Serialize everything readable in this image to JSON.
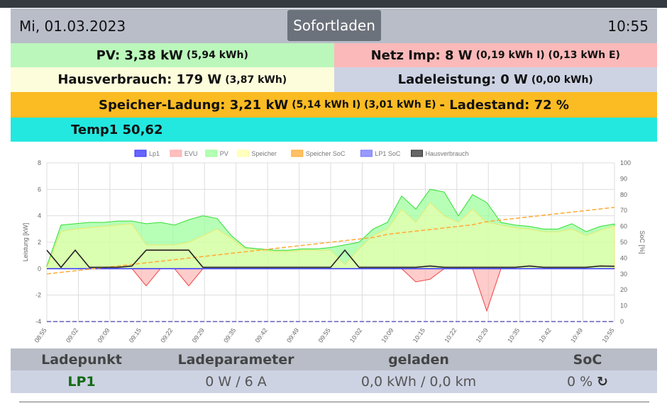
{
  "header": {
    "date": "Mi, 01.03.2023",
    "mode_button": "Sofortladen",
    "time": "10:55"
  },
  "pv": {
    "label": "PV: 3,38 kW",
    "detail": "(5,94 kWh)",
    "color": "#bbf7bb"
  },
  "netz": {
    "label": "Netz Imp: 8 W",
    "detail": "(0,19 kWh I) (0,13 kWh E)",
    "color": "#fbb9b9"
  },
  "haus": {
    "label": "Hausverbrauch: 179 W",
    "detail": "(3,87 kWh)",
    "color": "#fdfddb"
  },
  "lade": {
    "label": "Ladeleistung: 0 W",
    "detail": "(0,00 kWh)",
    "color": "#cdd3e3"
  },
  "speicher": {
    "label": "Speicher-Ladung: 3,21 kW",
    "detail": "(5,14 kWh I) (3,01 kWh E)",
    "soc": "- Ladestand: 72 %",
    "color": "#fbbb22"
  },
  "temp": {
    "label": "Temp1 50,62",
    "color": "#22e8e0"
  },
  "table": {
    "headers": [
      "Ladepunkt",
      "Ladeparameter",
      "geladen",
      "SoC"
    ],
    "row": {
      "name": "LP1",
      "param": "0 W / 6 A",
      "charged": "0,0 kWh / 0,0 km",
      "soc": "0 %"
    }
  },
  "chart_data": {
    "type": "line",
    "ylabel": "Leistung [kW]",
    "y2label": "SoC [%]",
    "ylim": [
      -4,
      8
    ],
    "y2lim": [
      0,
      100
    ],
    "yticks": [
      "8",
      "6",
      "4",
      "2",
      "0",
      "-2",
      "-4"
    ],
    "y2ticks": [
      "100",
      "90",
      "80",
      "70",
      "60",
      "50",
      "40",
      "30",
      "20",
      "10",
      "0"
    ],
    "xticks": [
      "08:55",
      "09:02",
      "09:09",
      "09:15",
      "09:22",
      "09:29",
      "09:35",
      "09:42",
      "09:49",
      "09:55",
      "10:02",
      "10:09",
      "10:15",
      "10:22",
      "10:29",
      "10:35",
      "10:42",
      "10:49",
      "10:55"
    ],
    "legend": [
      {
        "name": "Lp1",
        "color": "#3333ff"
      },
      {
        "name": "EVU",
        "color": "#ffaaaa"
      },
      {
        "name": "PV",
        "color": "#99ff99"
      },
      {
        "name": "Speicher",
        "color": "#ffffaa"
      },
      {
        "name": "Speicher SoC",
        "color": "#ffaa33"
      },
      {
        "name": "LP1 SoC",
        "color": "#7777ff"
      },
      {
        "name": "Hausverbrauch",
        "color": "#333333"
      }
    ],
    "x_minutes_from_0855": [
      0,
      3,
      6,
      9,
      12,
      15,
      18,
      21,
      24,
      27,
      30,
      33,
      36,
      39,
      42,
      45,
      48,
      51,
      54,
      57,
      60,
      63,
      66,
      69,
      72,
      75,
      78,
      81,
      84,
      87,
      90,
      93,
      96,
      99,
      102,
      105,
      108,
      111,
      114,
      117,
      120
    ],
    "series": {
      "PV": [
        0.2,
        3.3,
        3.4,
        3.5,
        3.5,
        3.6,
        3.6,
        3.4,
        3.5,
        3.3,
        3.7,
        4.0,
        3.8,
        2.5,
        1.6,
        1.5,
        1.4,
        1.4,
        1.5,
        1.5,
        1.6,
        1.8,
        2.0,
        3.0,
        3.5,
        5.5,
        4.5,
        6.0,
        5.8,
        4.0,
        5.6,
        5.0,
        3.5,
        3.3,
        3.2,
        3.0,
        3.0,
        3.4,
        2.8,
        3.2,
        3.38
      ],
      "Speicher": [
        0.1,
        2.8,
        3.0,
        3.1,
        3.2,
        3.3,
        3.4,
        1.8,
        1.8,
        1.8,
        2.0,
        2.5,
        3.0,
        2.3,
        1.5,
        1.4,
        1.3,
        1.3,
        1.4,
        1.4,
        1.4,
        0.3,
        1.5,
        2.5,
        3.0,
        4.5,
        3.5,
        5.0,
        4.0,
        3.5,
        4.5,
        3.5,
        3.3,
        3.1,
        3.0,
        2.8,
        2.8,
        3.0,
        2.5,
        2.9,
        3.21
      ],
      "Hausverbrauch": [
        1.4,
        0.1,
        1.4,
        0.1,
        0.1,
        0.1,
        0.2,
        1.4,
        1.4,
        1.4,
        1.4,
        0.1,
        0.1,
        0.1,
        0.1,
        0.1,
        0.1,
        0.1,
        0.1,
        0.1,
        0.1,
        1.4,
        0.1,
        0.1,
        0.1,
        0.1,
        0.1,
        0.2,
        0.1,
        0.1,
        0.1,
        0.1,
        0.1,
        0.1,
        0.2,
        0.1,
        0.1,
        0.1,
        0.1,
        0.2,
        0.18
      ],
      "EVU": [
        0,
        0,
        0,
        0,
        0,
        0,
        0,
        -1.3,
        0,
        0,
        -1.3,
        0,
        0,
        0,
        0,
        0,
        0,
        0,
        0,
        0,
        0,
        0,
        0,
        0,
        0,
        0,
        -1.0,
        -0.8,
        0,
        0,
        0,
        -3.2,
        0,
        0,
        0,
        0,
        0,
        0,
        0,
        0,
        0.01
      ],
      "Lp1": [
        0,
        0,
        0,
        0,
        0,
        0,
        0,
        0,
        0,
        0,
        0,
        0,
        0,
        0,
        0,
        0,
        0,
        0,
        0,
        0,
        0,
        0,
        0,
        0,
        0,
        0,
        0,
        0,
        0,
        0,
        0,
        0,
        0,
        0,
        0,
        0,
        0,
        0,
        0,
        0,
        0
      ],
      "Speicher SoC": [
        30,
        31,
        32,
        33,
        34,
        35,
        36,
        37,
        38,
        39,
        40,
        41,
        42,
        43,
        44,
        45,
        46,
        47,
        48,
        49,
        50,
        51,
        52,
        53,
        55,
        56,
        57,
        58,
        59,
        60,
        61,
        63,
        64,
        65,
        66,
        67,
        68,
        69,
        70,
        71,
        72
      ],
      "LP1 SoC": [
        0,
        0,
        0,
        0,
        0,
        0,
        0,
        0,
        0,
        0,
        0,
        0,
        0,
        0,
        0,
        0,
        0,
        0,
        0,
        0,
        0,
        0,
        0,
        0,
        0,
        0,
        0,
        0,
        0,
        0,
        0,
        0,
        0,
        0,
        0,
        0,
        0,
        0,
        0,
        0,
        0
      ]
    }
  }
}
